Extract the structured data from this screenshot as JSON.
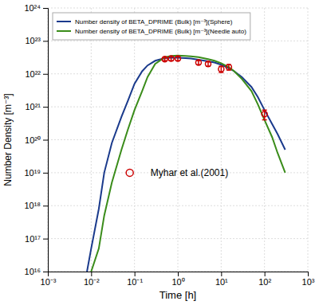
{
  "chart_data": {
    "type": "line",
    "xlabel": "Time [h]",
    "ylabel": "Number Density [m⁻³]",
    "log": true,
    "grid": true,
    "legend": "upper left",
    "xlim": [
      0.001,
      1000.0
    ],
    "ylim": [
      1e+16,
      1e+24
    ],
    "xticks": [
      {
        "value": 0.001,
        "label": "10⁻³"
      },
      {
        "value": 0.01,
        "label": "10⁻²"
      },
      {
        "value": 0.1,
        "label": "10⁻¹"
      },
      {
        "value": 1,
        "label": "10⁰"
      },
      {
        "value": 10,
        "label": "10¹"
      },
      {
        "value": 100,
        "label": "10²"
      },
      {
        "value": 1000,
        "label": "10³"
      }
    ],
    "yticks": [
      {
        "value": 1e+16,
        "label": "10¹⁶"
      },
      {
        "value": 1e+17,
        "label": "10¹⁷"
      },
      {
        "value": 1e+18,
        "label": "10¹⁸"
      },
      {
        "value": 1e+19,
        "label": "10¹⁹"
      },
      {
        "value": 1e+20,
        "label": "10²⁰"
      },
      {
        "value": 1e+21,
        "label": "10²¹"
      },
      {
        "value": 1e+22,
        "label": "10²²"
      },
      {
        "value": 1e+23,
        "label": "10²³"
      },
      {
        "value": 1e+24,
        "label": "10²⁴"
      }
    ],
    "series": [
      {
        "name": "Number density of BETA_DPRIME (Bulk) [m⁻³](Sphere)",
        "type": "line",
        "color": "#1a3a8c",
        "line_style": "solid",
        "x": [
          0.008,
          0.01,
          0.015,
          0.02,
          0.03,
          0.05,
          0.07,
          0.1,
          0.15,
          0.2,
          0.3,
          0.5,
          0.7,
          1.0,
          1.5,
          2.0,
          3.0,
          5.0,
          7.0,
          10.0,
          15.0,
          20.0,
          30.0,
          50.0,
          70.0,
          100.0,
          150.0,
          200.0,
          300.0
        ],
        "values": [
          1e+16,
          5e+16,
          8e+17,
          1e+19,
          8e+19,
          5e+20,
          1.5e+21,
          5e+21,
          1.2e+22,
          1.8e+22,
          2.5e+22,
          3e+22,
          3.1e+22,
          3.1e+22,
          3e+22,
          2.9e+22,
          2.7e+22,
          2.4e+22,
          2.2e+22,
          1.9e+22,
          1.5e+22,
          1.2e+22,
          8e+21,
          4e+21,
          2e+21,
          8e+20,
          3e+20,
          1.5e+20,
          5e+19
        ]
      },
      {
        "name": "Number density of BETA_DPRIME (Bulk) [m⁻³](Needle auto)",
        "type": "line",
        "color": "#3a8c1a",
        "line_style": "solid",
        "x": [
          0.01,
          0.015,
          0.02,
          0.03,
          0.05,
          0.07,
          0.1,
          0.15,
          0.2,
          0.3,
          0.5,
          0.7,
          1.0,
          1.5,
          2.0,
          3.0,
          5.0,
          7.0,
          10.0,
          15.0,
          20.0,
          30.0,
          50.0,
          70.0,
          100.0,
          150.0,
          200.0,
          300.0
        ],
        "values": [
          1e+16,
          5e+16,
          5e+17,
          5e+18,
          5e+19,
          2e+20,
          8e+20,
          3e+21,
          8e+21,
          2e+22,
          3.2e+22,
          3.5e+22,
          3.6e+22,
          3.5e+22,
          3.4e+22,
          3.2e+22,
          2.8e+22,
          2.5e+22,
          2.1e+22,
          1.6e+22,
          1.2e+22,
          7e+21,
          3e+21,
          1.2e+21,
          4e+20,
          1.2e+20,
          4e+19,
          1e+19
        ]
      },
      {
        "name": "Myhar et al.(2001)",
        "type": "scatter",
        "color": "#cc0000",
        "marker": "circle",
        "x": [
          0.5,
          0.7,
          1.0,
          3.0,
          5.0,
          10.0,
          15.0,
          100.0
        ],
        "values": [
          2.8e+22,
          2.9e+22,
          2.9e+22,
          2.2e+22,
          2e+22,
          1.4e+22,
          1.6e+22,
          6e+20
        ],
        "error_minus": [
          3e+21,
          4e+21,
          4e+21,
          3e+21,
          3e+21,
          3e+21,
          3e+21,
          2e+20
        ],
        "error_plus": [
          3e+21,
          4e+21,
          4e+21,
          3e+21,
          3e+21,
          3e+21,
          3e+21,
          2e+20
        ]
      }
    ]
  }
}
